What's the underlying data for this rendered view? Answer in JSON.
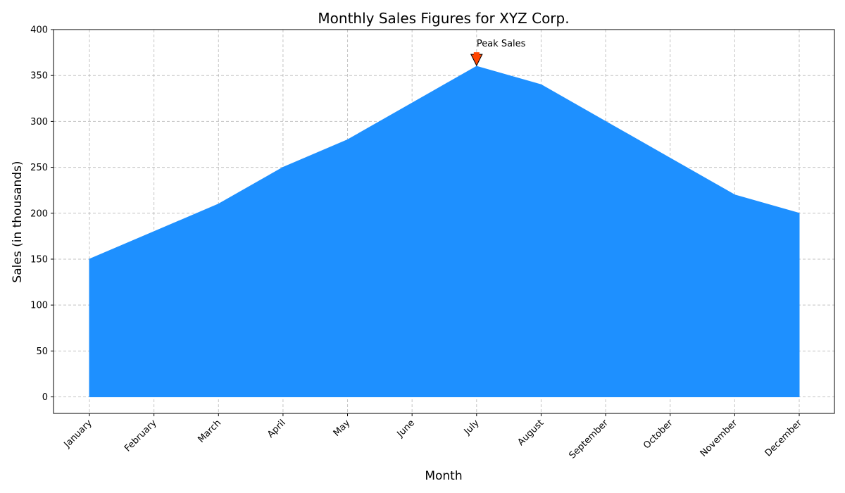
{
  "chart_data": {
    "type": "area",
    "title": "Monthly Sales Figures for XYZ Corp.",
    "xlabel": "Month",
    "ylabel": "Sales (in thousands)",
    "categories": [
      "January",
      "February",
      "March",
      "April",
      "May",
      "June",
      "July",
      "August",
      "September",
      "October",
      "November",
      "December"
    ],
    "series": [
      {
        "values": [
          150,
          180,
          210,
          250,
          280,
          320,
          360,
          340,
          300,
          260,
          220,
          200
        ],
        "color": "#1e90ff"
      }
    ],
    "ylim": [
      -18,
      400
    ],
    "yticks": [
      0,
      50,
      100,
      150,
      200,
      250,
      300,
      350,
      400
    ],
    "grid": true,
    "annotation": {
      "text": "Peak Sales",
      "category": "July",
      "value": 360,
      "marker_color": "#ff4500"
    }
  }
}
